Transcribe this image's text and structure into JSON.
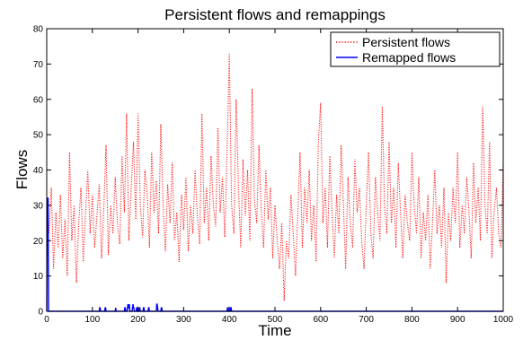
{
  "chart_data": {
    "type": "line",
    "title": "Persistent flows and remappings",
    "xlabel": "Time",
    "ylabel": "Flows",
    "xlim": [
      0,
      1000
    ],
    "ylim": [
      0,
      80
    ],
    "xticks": [
      0,
      100,
      200,
      300,
      400,
      500,
      600,
      700,
      800,
      900,
      1000
    ],
    "yticks": [
      0,
      10,
      20,
      30,
      40,
      50,
      60,
      70,
      80
    ],
    "grid": false,
    "legend_position": "top-right",
    "series": [
      {
        "name": "Persistent flows",
        "color": "#ff0000",
        "style": "dotted",
        "x": [
          0,
          5,
          10,
          15,
          20,
          25,
          30,
          35,
          40,
          45,
          50,
          55,
          60,
          65,
          70,
          75,
          80,
          85,
          90,
          95,
          100,
          105,
          110,
          115,
          120,
          125,
          130,
          135,
          140,
          145,
          150,
          155,
          160,
          165,
          170,
          175,
          180,
          185,
          190,
          195,
          200,
          205,
          210,
          215,
          220,
          225,
          230,
          235,
          240,
          245,
          250,
          255,
          260,
          265,
          270,
          275,
          280,
          285,
          290,
          295,
          300,
          305,
          310,
          315,
          320,
          325,
          330,
          335,
          340,
          345,
          350,
          355,
          360,
          365,
          370,
          375,
          380,
          385,
          390,
          395,
          400,
          405,
          410,
          415,
          420,
          425,
          430,
          435,
          440,
          445,
          450,
          455,
          460,
          465,
          470,
          475,
          480,
          485,
          490,
          495,
          500,
          505,
          510,
          515,
          520,
          525,
          530,
          535,
          540,
          545,
          550,
          555,
          560,
          565,
          570,
          575,
          580,
          585,
          590,
          595,
          600,
          605,
          610,
          615,
          620,
          625,
          630,
          635,
          640,
          645,
          650,
          655,
          660,
          665,
          670,
          675,
          680,
          685,
          690,
          695,
          700,
          705,
          710,
          715,
          720,
          725,
          730,
          735,
          740,
          745,
          750,
          755,
          760,
          765,
          770,
          775,
          780,
          785,
          790,
          795,
          800,
          805,
          810,
          815,
          820,
          825,
          830,
          835,
          840,
          845,
          850,
          855,
          860,
          865,
          870,
          875,
          880,
          885,
          890,
          895,
          900,
          905,
          910,
          915,
          920,
          925,
          930,
          935,
          940,
          945,
          950,
          955,
          960,
          965,
          970,
          975,
          980,
          985,
          990,
          995,
          1000
        ],
        "y": [
          31,
          22,
          35,
          12,
          28,
          18,
          33,
          15,
          26,
          10,
          45,
          20,
          30,
          8,
          25,
          35,
          14,
          28,
          40,
          22,
          33,
          18,
          27,
          36,
          15,
          29,
          47,
          16,
          30,
          22,
          38,
          25,
          19,
          44,
          28,
          56,
          20,
          35,
          48,
          26,
          56,
          30,
          21,
          40,
          33,
          18,
          45,
          28,
          37,
          22,
          53,
          30,
          17,
          36,
          25,
          42,
          20,
          28,
          14,
          33,
          23,
          38,
          17,
          30,
          22,
          40,
          27,
          19,
          56,
          25,
          35,
          20,
          44,
          30,
          24,
          52,
          28,
          38,
          21,
          45,
          73,
          30,
          22,
          60,
          35,
          18,
          43,
          27,
          40,
          20,
          63,
          32,
          25,
          47,
          28,
          18,
          40,
          26,
          35,
          15,
          30,
          20,
          12,
          25,
          3,
          20,
          15,
          33,
          22,
          10,
          28,
          45,
          18,
          35,
          25,
          40,
          20,
          30,
          14,
          48,
          59,
          25,
          35,
          18,
          44,
          28,
          15,
          33,
          22,
          47,
          30,
          12,
          38,
          25,
          18,
          43,
          28,
          35,
          20,
          12,
          30,
          45,
          22,
          15,
          38,
          28,
          20,
          58,
          30,
          22,
          48,
          25,
          35,
          18,
          42,
          28,
          15,
          33,
          25,
          20,
          45,
          30,
          22,
          38,
          15,
          28,
          20,
          33,
          12,
          25,
          40,
          22,
          30,
          18,
          35,
          8,
          28,
          20,
          35,
          25,
          45,
          18,
          30,
          22,
          38,
          28,
          15,
          42,
          25,
          35,
          20,
          58,
          30,
          22,
          48,
          15,
          28,
          35,
          22,
          18,
          42
        ]
      },
      {
        "name": "Remapped flows",
        "color": "#0000ff",
        "style": "solid",
        "x": [
          0,
          1,
          2,
          3,
          4,
          5,
          6,
          8,
          115,
          116,
          117,
          118,
          127,
          128,
          129,
          130,
          150,
          151,
          152,
          170,
          171,
          172,
          173,
          176,
          177,
          178,
          179,
          180,
          181,
          182,
          187,
          188,
          189,
          190,
          191,
          192,
          196,
          197,
          198,
          199,
          202,
          203,
          204,
          205,
          211,
          212,
          213,
          214,
          222,
          223,
          224,
          225,
          240,
          241,
          242,
          243,
          244,
          250,
          251,
          252,
          253,
          395,
          396,
          397,
          398,
          402,
          403,
          404,
          405,
          1000
        ],
        "y": [
          0,
          32,
          32,
          32,
          0,
          0,
          0,
          0,
          0,
          1,
          1,
          0,
          0,
          1,
          1,
          0,
          0,
          1,
          0,
          0,
          1,
          1,
          0,
          0,
          1,
          2,
          1,
          1,
          2,
          0,
          0,
          1,
          2,
          1,
          1,
          0,
          0,
          1,
          1,
          0,
          0,
          1,
          1,
          0,
          0,
          1,
          1,
          0,
          0,
          1,
          1,
          0,
          0,
          2,
          2,
          1,
          0,
          0,
          1,
          1,
          0,
          0,
          1,
          1,
          0,
          0,
          1,
          1,
          0,
          0
        ]
      }
    ]
  }
}
